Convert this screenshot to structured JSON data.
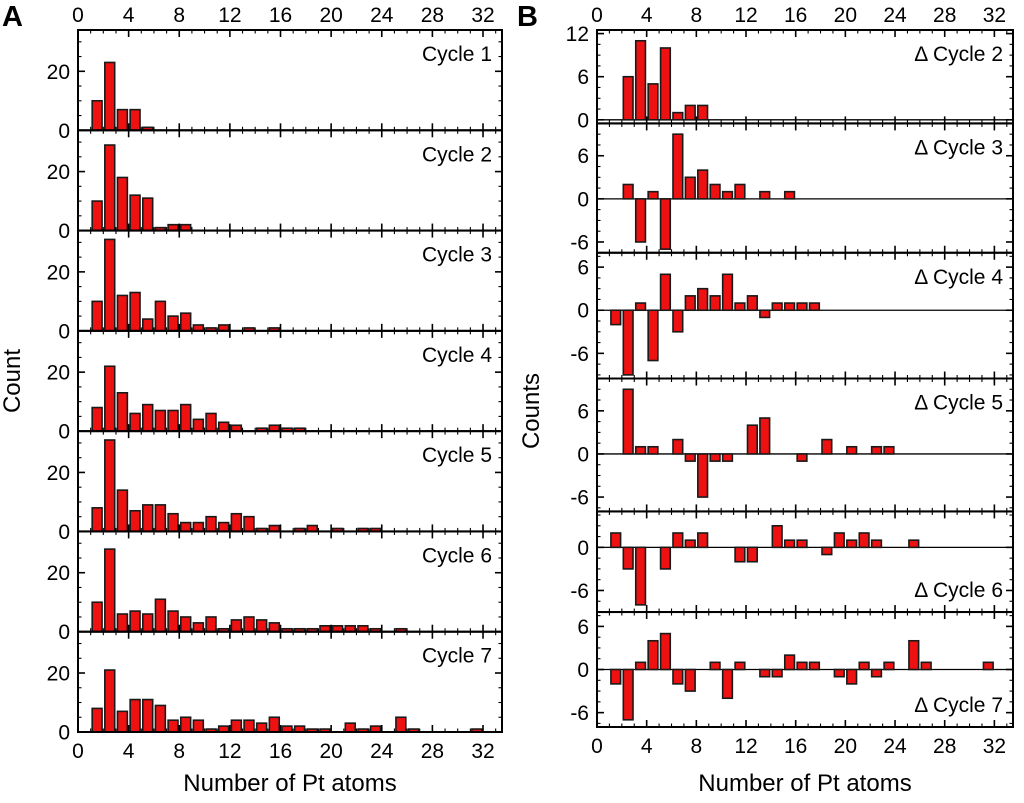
{
  "figure": {
    "background": "#ffffff",
    "frame_color": "#000000"
  },
  "chart_data": {
    "type": "bar",
    "title": "",
    "x_axis": {
      "label": "Number of Pt atoms",
      "min": 0,
      "max": 33.5,
      "major_ticks": [
        0,
        4,
        8,
        12,
        16,
        20,
        24,
        28,
        32
      ],
      "minor_step": 1
    },
    "bar_style": {
      "fill": "#ee1111",
      "stroke": "#1a1a1a"
    },
    "panel_A": {
      "letter": "A",
      "ylabel": "Count",
      "subplots": [
        {
          "label": "Cycle 1",
          "ylim": [
            0,
            34
          ],
          "yticks": [
            20,
            0
          ],
          "y_minor_step": 5,
          "label_pos": "top",
          "bars": [
            [
              1,
              10
            ],
            [
              2,
              23
            ],
            [
              3,
              7
            ],
            [
              4,
              7
            ],
            [
              5,
              1
            ]
          ]
        },
        {
          "label": "Cycle 2",
          "ylim": [
            0,
            34
          ],
          "yticks": [
            20,
            0
          ],
          "y_minor_step": 5,
          "label_pos": "top",
          "bars": [
            [
              1,
              10
            ],
            [
              2,
              29
            ],
            [
              3,
              18
            ],
            [
              4,
              12
            ],
            [
              5,
              11
            ],
            [
              6,
              1
            ],
            [
              7,
              2
            ],
            [
              8,
              2
            ]
          ]
        },
        {
          "label": "Cycle 3",
          "ylim": [
            0,
            34
          ],
          "yticks": [
            20,
            0
          ],
          "y_minor_step": 5,
          "label_pos": "top",
          "bars": [
            [
              1,
              10
            ],
            [
              2,
              31
            ],
            [
              3,
              12
            ],
            [
              4,
              13
            ],
            [
              5,
              4
            ],
            [
              6,
              10
            ],
            [
              7,
              5
            ],
            [
              8,
              6
            ],
            [
              9,
              2
            ],
            [
              10,
              1
            ],
            [
              11,
              2
            ],
            [
              13,
              1
            ],
            [
              15,
              1
            ]
          ]
        },
        {
          "label": "Cycle 4",
          "ylim": [
            0,
            34
          ],
          "yticks": [
            20,
            0
          ],
          "y_minor_step": 5,
          "label_pos": "top",
          "bars": [
            [
              1,
              8
            ],
            [
              2,
              22
            ],
            [
              3,
              13
            ],
            [
              4,
              6
            ],
            [
              5,
              9
            ],
            [
              6,
              7
            ],
            [
              7,
              7
            ],
            [
              8,
              9
            ],
            [
              9,
              4
            ],
            [
              10,
              6
            ],
            [
              11,
              3
            ],
            [
              12,
              2
            ],
            [
              14,
              1
            ],
            [
              15,
              2
            ],
            [
              16,
              1
            ],
            [
              17,
              1
            ]
          ]
        },
        {
          "label": "Cycle 5",
          "ylim": [
            0,
            34
          ],
          "yticks": [
            20,
            0
          ],
          "y_minor_step": 5,
          "label_pos": "top",
          "bars": [
            [
              1,
              8
            ],
            [
              2,
              31
            ],
            [
              3,
              14
            ],
            [
              4,
              7
            ],
            [
              5,
              9
            ],
            [
              6,
              9
            ],
            [
              7,
              6
            ],
            [
              8,
              3
            ],
            [
              9,
              3
            ],
            [
              10,
              5
            ],
            [
              11,
              3
            ],
            [
              12,
              6
            ],
            [
              13,
              5
            ],
            [
              14,
              1
            ],
            [
              15,
              2
            ],
            [
              17,
              1
            ],
            [
              18,
              2
            ],
            [
              20,
              1
            ],
            [
              22,
              1
            ],
            [
              23,
              1
            ]
          ]
        },
        {
          "label": "Cycle 6",
          "ylim": [
            0,
            34
          ],
          "yticks": [
            20,
            0
          ],
          "y_minor_step": 5,
          "label_pos": "top",
          "bars": [
            [
              1,
              10
            ],
            [
              2,
              28
            ],
            [
              3,
              6
            ],
            [
              4,
              7
            ],
            [
              5,
              6
            ],
            [
              6,
              11
            ],
            [
              7,
              7
            ],
            [
              8,
              5
            ],
            [
              9,
              3
            ],
            [
              10,
              5
            ],
            [
              11,
              1
            ],
            [
              12,
              4
            ],
            [
              13,
              5
            ],
            [
              14,
              4
            ],
            [
              15,
              3
            ],
            [
              16,
              1
            ],
            [
              17,
              1
            ],
            [
              18,
              1
            ],
            [
              19,
              2
            ],
            [
              20,
              2
            ],
            [
              21,
              2
            ],
            [
              22,
              2
            ],
            [
              23,
              1
            ],
            [
              25,
              1
            ]
          ]
        },
        {
          "label": "Cycle 7",
          "ylim": [
            0,
            34
          ],
          "yticks": [
            20,
            0
          ],
          "y_minor_step": 5,
          "label_pos": "top",
          "bars": [
            [
              1,
              8
            ],
            [
              2,
              21
            ],
            [
              3,
              7
            ],
            [
              4,
              11
            ],
            [
              5,
              11
            ],
            [
              6,
              9
            ],
            [
              7,
              4
            ],
            [
              8,
              5
            ],
            [
              9,
              4
            ],
            [
              10,
              1
            ],
            [
              11,
              2
            ],
            [
              12,
              4
            ],
            [
              13,
              4
            ],
            [
              14,
              3
            ],
            [
              15,
              5
            ],
            [
              16,
              2
            ],
            [
              17,
              2
            ],
            [
              18,
              1
            ],
            [
              19,
              1
            ],
            [
              21,
              3
            ],
            [
              22,
              1
            ],
            [
              23,
              2
            ],
            [
              25,
              5
            ],
            [
              26,
              1
            ],
            [
              31,
              1
            ]
          ]
        }
      ]
    },
    "panel_B": {
      "letter": "B",
      "ylabel": "Counts",
      "subplots": [
        {
          "label": "Δ Cycle 2",
          "ylim": [
            -0.5,
            12.5
          ],
          "yticks": [
            12,
            6,
            0
          ],
          "y_minor_step": 1.5,
          "label_pos": "top",
          "bars": [
            [
              2,
              6
            ],
            [
              3,
              11
            ],
            [
              4,
              5
            ],
            [
              5,
              10
            ],
            [
              6,
              1
            ],
            [
              7,
              2
            ],
            [
              8,
              2
            ]
          ]
        },
        {
          "label": "Δ Cycle 3",
          "ylim": [
            -7.5,
            10.5
          ],
          "yticks": [
            6,
            0,
            -6
          ],
          "y_minor_step": 1.5,
          "label_pos": "top",
          "bars": [
            [
              2,
              2
            ],
            [
              3,
              -6
            ],
            [
              4,
              1
            ],
            [
              5,
              -7
            ],
            [
              6,
              9
            ],
            [
              7,
              3
            ],
            [
              8,
              4
            ],
            [
              9,
              2
            ],
            [
              10,
              1
            ],
            [
              11,
              2
            ],
            [
              13,
              1
            ],
            [
              15,
              1
            ]
          ]
        },
        {
          "label": "Δ Cycle 4",
          "ylim": [
            -9.5,
            8
          ],
          "yticks": [
            6,
            0,
            -6
          ],
          "y_minor_step": 1.5,
          "label_pos": "top",
          "bars": [
            [
              1,
              -2
            ],
            [
              2,
              -9
            ],
            [
              3,
              1
            ],
            [
              4,
              -7
            ],
            [
              5,
              5
            ],
            [
              6,
              -3
            ],
            [
              7,
              2
            ],
            [
              8,
              3
            ],
            [
              9,
              2
            ],
            [
              10,
              5
            ],
            [
              11,
              1
            ],
            [
              12,
              2
            ],
            [
              13,
              -1
            ],
            [
              14,
              1
            ],
            [
              15,
              1
            ],
            [
              16,
              1
            ],
            [
              17,
              1
            ]
          ]
        },
        {
          "label": "Δ Cycle 5",
          "ylim": [
            -8,
            10.5
          ],
          "yticks": [
            6,
            0,
            -6
          ],
          "y_minor_step": 1.5,
          "label_pos": "top",
          "bars": [
            [
              2,
              9
            ],
            [
              3,
              1
            ],
            [
              4,
              1
            ],
            [
              6,
              2
            ],
            [
              7,
              -1
            ],
            [
              8,
              -6
            ],
            [
              9,
              -1
            ],
            [
              10,
              -1
            ],
            [
              12,
              4
            ],
            [
              13,
              5
            ],
            [
              16,
              -1
            ],
            [
              18,
              2
            ],
            [
              20,
              1
            ],
            [
              22,
              1
            ],
            [
              23,
              1
            ]
          ]
        },
        {
          "label": "Δ Cycle 6",
          "ylim": [
            -9,
            5
          ],
          "yticks": [
            0,
            -6
          ],
          "y_minor_step": 1.5,
          "label_pos": "bottom",
          "bars": [
            [
              1,
              2
            ],
            [
              2,
              -3
            ],
            [
              3,
              -8
            ],
            [
              5,
              -3
            ],
            [
              6,
              2
            ],
            [
              7,
              1
            ],
            [
              8,
              2
            ],
            [
              11,
              -2
            ],
            [
              12,
              -2
            ],
            [
              14,
              3
            ],
            [
              15,
              1
            ],
            [
              16,
              1
            ],
            [
              18,
              -1
            ],
            [
              19,
              2
            ],
            [
              20,
              1
            ],
            [
              21,
              2
            ],
            [
              22,
              1
            ],
            [
              25,
              1
            ]
          ]
        },
        {
          "label": "Δ Cycle 7",
          "ylim": [
            -8,
            8
          ],
          "yticks": [
            6,
            0,
            -6
          ],
          "y_minor_step": 1.5,
          "label_pos": "bottom",
          "bars": [
            [
              1,
              -2
            ],
            [
              2,
              -7
            ],
            [
              3,
              1
            ],
            [
              4,
              4
            ],
            [
              5,
              5
            ],
            [
              6,
              -2
            ],
            [
              7,
              -3
            ],
            [
              9,
              1
            ],
            [
              10,
              -4
            ],
            [
              11,
              1
            ],
            [
              13,
              -1
            ],
            [
              14,
              -1
            ],
            [
              15,
              2
            ],
            [
              16,
              1
            ],
            [
              17,
              1
            ],
            [
              19,
              -1
            ],
            [
              20,
              -2
            ],
            [
              21,
              1
            ],
            [
              22,
              -1
            ],
            [
              23,
              1
            ],
            [
              25,
              4
            ],
            [
              26,
              1
            ],
            [
              31,
              1
            ]
          ]
        }
      ]
    }
  }
}
